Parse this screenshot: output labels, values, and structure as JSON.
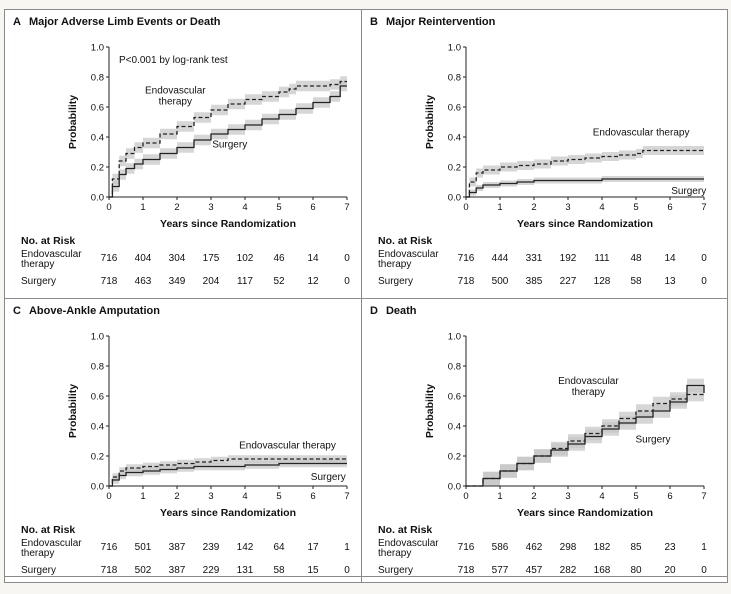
{
  "figure": {
    "background": "#ffffff",
    "border_color": "#8a8a8a",
    "endo_color": "#222222",
    "surg_color": "#222222",
    "band_color": "#c4c4c4"
  },
  "panels": [
    {
      "letter": "A",
      "title": "Major Adverse Limb Events or Death",
      "pvalue": "P<0.001 by log-rank test",
      "risk_rows": [
        {
          "label_lines": [
            "Endovascular",
            "therapy"
          ],
          "values": [
            "716",
            "404",
            "304",
            "175",
            "102",
            "46",
            "14",
            "0"
          ]
        },
        {
          "label_lines": [
            "Surgery"
          ],
          "values": [
            "718",
            "463",
            "349",
            "204",
            "117",
            "52",
            "12",
            "0"
          ]
        }
      ]
    },
    {
      "letter": "B",
      "title": "Major Reintervention",
      "pvalue": "",
      "risk_rows": [
        {
          "label_lines": [
            "Endovascular",
            "therapy"
          ],
          "values": [
            "716",
            "444",
            "331",
            "192",
            "111",
            "48",
            "14",
            "0"
          ]
        },
        {
          "label_lines": [
            "Surgery"
          ],
          "values": [
            "718",
            "500",
            "385",
            "227",
            "128",
            "58",
            "13",
            "0"
          ]
        }
      ]
    },
    {
      "letter": "C",
      "title": "Above-Ankle Amputation",
      "pvalue": "",
      "risk_rows": [
        {
          "label_lines": [
            "Endovascular",
            "therapy"
          ],
          "values": [
            "716",
            "501",
            "387",
            "239",
            "142",
            "64",
            "17",
            "1"
          ]
        },
        {
          "label_lines": [
            "Surgery"
          ],
          "values": [
            "718",
            "502",
            "387",
            "229",
            "131",
            "58",
            "15",
            "0"
          ]
        }
      ]
    },
    {
      "letter": "D",
      "title": "Death",
      "pvalue": "",
      "risk_rows": [
        {
          "label_lines": [
            "Endovascular",
            "therapy"
          ],
          "values": [
            "716",
            "586",
            "462",
            "298",
            "182",
            "85",
            "23",
            "1"
          ]
        },
        {
          "label_lines": [
            "Surgery"
          ],
          "values": [
            "718",
            "577",
            "457",
            "282",
            "168",
            "80",
            "20",
            "0"
          ]
        }
      ]
    }
  ],
  "chart_data": [
    {
      "type": "line",
      "title": "Major Adverse Limb Events or Death",
      "xlabel": "Years since Randomization",
      "ylabel": "Probability",
      "xlim": [
        0,
        7
      ],
      "ylim": [
        0,
        1.0
      ],
      "xticks": [
        "0",
        "1",
        "2",
        "3",
        "4",
        "5",
        "6",
        "7"
      ],
      "yticks": [
        "0.0",
        "0.2",
        "0.4",
        "0.6",
        "0.8",
        "1.0"
      ],
      "annotations": [
        "P<0.001 by log-rank test"
      ],
      "series": [
        {
          "name": "Endovascular therapy",
          "label_lines": [
            "Endovascular",
            "therapy"
          ],
          "style": "dashed",
          "ci_halfwidth": 0.035,
          "label_at": [
            1.95,
            0.69
          ],
          "label_anchor": "middle",
          "x": [
            0,
            0.1,
            0.3,
            0.5,
            0.75,
            1,
            1.5,
            2,
            2.5,
            3,
            3.5,
            4,
            4.5,
            5,
            5.3,
            5.5,
            6,
            6.5,
            6.8,
            7
          ],
          "y": [
            0,
            0.12,
            0.24,
            0.29,
            0.33,
            0.36,
            0.42,
            0.47,
            0.53,
            0.58,
            0.62,
            0.65,
            0.67,
            0.7,
            0.72,
            0.74,
            0.74,
            0.75,
            0.77,
            0.77
          ]
        },
        {
          "name": "Surgery",
          "label_lines": [
            "Surgery"
          ],
          "style": "solid",
          "ci_halfwidth": 0.035,
          "label_at": [
            3.55,
            0.33
          ],
          "label_anchor": "middle",
          "x": [
            0,
            0.1,
            0.3,
            0.5,
            0.75,
            1,
            1.5,
            2,
            2.5,
            3,
            3.5,
            4,
            4.5,
            5,
            5.5,
            6,
            6.5,
            6.8,
            7
          ],
          "y": [
            0,
            0.07,
            0.15,
            0.19,
            0.22,
            0.25,
            0.29,
            0.33,
            0.38,
            0.42,
            0.45,
            0.48,
            0.52,
            0.55,
            0.59,
            0.63,
            0.67,
            0.74,
            0.74
          ]
        }
      ]
    },
    {
      "type": "line",
      "title": "Major Reintervention",
      "xlabel": "Years since Randomization",
      "ylabel": "Probability",
      "xlim": [
        0,
        7
      ],
      "ylim": [
        0,
        1.0
      ],
      "xticks": [
        "0",
        "1",
        "2",
        "3",
        "4",
        "5",
        "6",
        "7"
      ],
      "yticks": [
        "0.0",
        "0.2",
        "0.4",
        "0.6",
        "0.8",
        "1.0"
      ],
      "annotations": [],
      "series": [
        {
          "name": "Endovascular therapy",
          "label_lines": [
            "Endovascular therapy"
          ],
          "style": "dashed",
          "ci_halfwidth": 0.03,
          "label_at": [
            5.15,
            0.41
          ],
          "label_anchor": "middle",
          "x": [
            0,
            0.1,
            0.3,
            0.5,
            1,
            1.5,
            2,
            2.5,
            3,
            3.5,
            4,
            4.5,
            5,
            5.2,
            6,
            7
          ],
          "y": [
            0,
            0.1,
            0.16,
            0.18,
            0.2,
            0.21,
            0.22,
            0.24,
            0.25,
            0.26,
            0.27,
            0.28,
            0.29,
            0.31,
            0.31,
            0.31
          ]
        },
        {
          "name": "Surgery",
          "label_lines": [
            "Surgery"
          ],
          "style": "solid",
          "ci_halfwidth": 0.02,
          "label_at": [
            6.55,
            0.02
          ],
          "label_anchor": "middle",
          "x": [
            0,
            0.1,
            0.3,
            0.5,
            1,
            1.5,
            2,
            3,
            4,
            5,
            6,
            7
          ],
          "y": [
            0,
            0.03,
            0.06,
            0.08,
            0.09,
            0.1,
            0.11,
            0.11,
            0.12,
            0.12,
            0.12,
            0.12
          ]
        }
      ]
    },
    {
      "type": "line",
      "title": "Above-Ankle Amputation",
      "xlabel": "Years since Randomization",
      "ylabel": "Probability",
      "xlim": [
        0,
        7
      ],
      "ylim": [
        0,
        1.0
      ],
      "xticks": [
        "0",
        "1",
        "2",
        "3",
        "4",
        "5",
        "6",
        "7"
      ],
      "yticks": [
        "0.0",
        "0.2",
        "0.4",
        "0.6",
        "0.8",
        "1.0"
      ],
      "annotations": [],
      "series": [
        {
          "name": "Endovascular therapy",
          "label_lines": [
            "Endovascular therapy"
          ],
          "style": "dashed",
          "ci_halfwidth": 0.025,
          "label_at": [
            5.25,
            0.25
          ],
          "label_anchor": "middle",
          "x": [
            0,
            0.1,
            0.3,
            0.5,
            1,
            1.5,
            2,
            2.5,
            3,
            3.5,
            4,
            5,
            6,
            7
          ],
          "y": [
            0,
            0.06,
            0.1,
            0.12,
            0.13,
            0.14,
            0.15,
            0.16,
            0.17,
            0.18,
            0.18,
            0.18,
            0.18,
            0.18
          ]
        },
        {
          "name": "Surgery",
          "label_lines": [
            "Surgery"
          ],
          "style": "solid",
          "ci_halfwidth": 0.025,
          "label_at": [
            6.45,
            0.04
          ],
          "label_anchor": "middle",
          "x": [
            0,
            0.1,
            0.3,
            0.5,
            1,
            1.5,
            2,
            2.5,
            3,
            4,
            5,
            6,
            7
          ],
          "y": [
            0,
            0.04,
            0.07,
            0.09,
            0.1,
            0.11,
            0.12,
            0.13,
            0.13,
            0.14,
            0.15,
            0.15,
            0.15
          ]
        }
      ]
    },
    {
      "type": "line",
      "title": "Death",
      "xlabel": "Years since Randomization",
      "ylabel": "Probability",
      "xlim": [
        0,
        7
      ],
      "ylim": [
        0,
        1.0
      ],
      "xticks": [
        "0",
        "1",
        "2",
        "3",
        "4",
        "5",
        "6",
        "7"
      ],
      "yticks": [
        "0.0",
        "0.2",
        "0.4",
        "0.6",
        "0.8",
        "1.0"
      ],
      "annotations": [],
      "series": [
        {
          "name": "Endovascular therapy",
          "label_lines": [
            "Endovascular",
            "therapy"
          ],
          "style": "dashed",
          "ci_halfwidth": 0.045,
          "label_at": [
            3.6,
            0.68
          ],
          "label_anchor": "middle",
          "x": [
            0,
            0.5,
            1,
            1.5,
            2,
            2.5,
            3,
            3.5,
            4,
            4.5,
            5,
            5.5,
            6,
            6.5,
            7
          ],
          "y": [
            0,
            0.05,
            0.1,
            0.15,
            0.2,
            0.25,
            0.3,
            0.35,
            0.4,
            0.45,
            0.5,
            0.55,
            0.58,
            0.61,
            0.62
          ]
        },
        {
          "name": "Surgery",
          "label_lines": [
            "Surgery"
          ],
          "style": "solid",
          "ci_halfwidth": 0.045,
          "label_at": [
            5.5,
            0.29
          ],
          "label_anchor": "middle",
          "x": [
            0,
            0.5,
            1,
            1.5,
            2,
            2.5,
            3,
            3.5,
            4,
            4.5,
            5,
            5.5,
            6,
            6.5,
            7
          ],
          "y": [
            0,
            0.05,
            0.1,
            0.15,
            0.2,
            0.24,
            0.28,
            0.33,
            0.38,
            0.42,
            0.46,
            0.5,
            0.56,
            0.67,
            0.62
          ]
        }
      ]
    }
  ]
}
